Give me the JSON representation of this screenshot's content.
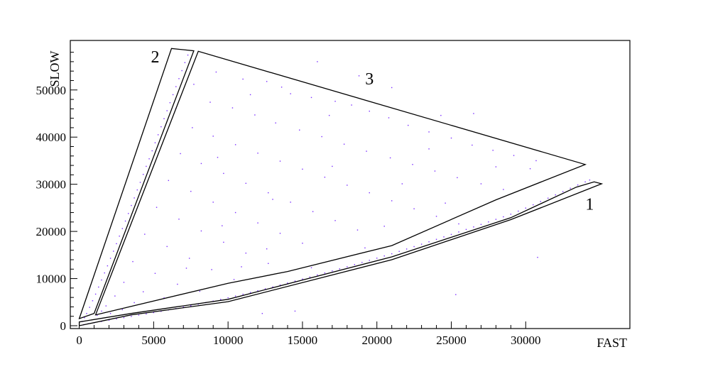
{
  "chart_data": {
    "type": "scatter",
    "title": "",
    "xlabel": "FAST",
    "ylabel": "SLOW",
    "xlim": [
      -600,
      37000
    ],
    "ylim": [
      -600,
      60500
    ],
    "x_ticks": [
      0,
      5000,
      10000,
      15000,
      20000,
      25000,
      30000
    ],
    "x_tick_labels": [
      "0",
      "5000",
      "10000",
      "15000",
      "20000",
      "25000",
      "30000"
    ],
    "y_ticks": [
      0,
      10000,
      20000,
      30000,
      40000,
      50000
    ],
    "y_tick_labels": [
      "0",
      "10000",
      "20000",
      "30000",
      "40000",
      "50000"
    ],
    "grid": false,
    "point_color": "#7b2fff",
    "regions": [
      {
        "label": "1",
        "label_at": [
          34300,
          24600
        ],
        "polygon": [
          [
            0,
            0
          ],
          [
            0,
            800
          ],
          [
            3500,
            2600
          ],
          [
            10000,
            5600
          ],
          [
            21000,
            14600
          ],
          [
            29000,
            22900
          ],
          [
            33400,
            29400
          ],
          [
            34600,
            30500
          ],
          [
            35100,
            30100
          ],
          [
            29000,
            22500
          ],
          [
            21000,
            14000
          ],
          [
            10000,
            5100
          ],
          [
            3500,
            2300
          ]
        ]
      },
      {
        "label": "2",
        "label_at": [
          5100,
          55800
        ],
        "polygon": [
          [
            0,
            1500
          ],
          [
            6200,
            58800
          ],
          [
            7700,
            58300
          ],
          [
            1000,
            2600
          ]
        ]
      },
      {
        "label": "3",
        "label_at": [
          19500,
          51200
        ],
        "polygon": [
          [
            1100,
            2300
          ],
          [
            8000,
            58200
          ],
          [
            34000,
            34200
          ],
          [
            28000,
            26700
          ],
          [
            21000,
            17000
          ],
          [
            14000,
            11500
          ],
          [
            10000,
            9000
          ]
        ]
      }
    ],
    "series": [
      {
        "points_fast_band": [
          [
            300,
            230
          ],
          [
            600,
            420
          ],
          [
            1000,
            640
          ],
          [
            1500,
            900
          ],
          [
            2000,
            1180
          ],
          [
            2500,
            1450
          ],
          [
            3000,
            1700
          ],
          [
            3500,
            1980
          ],
          [
            4000,
            2250
          ],
          [
            4500,
            2500
          ],
          [
            5000,
            2780
          ],
          [
            5500,
            3050
          ],
          [
            6000,
            3350
          ],
          [
            6500,
            3650
          ],
          [
            7000,
            3950
          ],
          [
            7500,
            4250
          ],
          [
            8000,
            4560
          ],
          [
            8500,
            4900
          ],
          [
            9000,
            5230
          ],
          [
            9500,
            5580
          ],
          [
            10000,
            5930
          ],
          [
            10500,
            6300
          ],
          [
            11000,
            6680
          ],
          [
            11500,
            7050
          ],
          [
            12000,
            7430
          ],
          [
            12500,
            7820
          ],
          [
            13000,
            8220
          ],
          [
            13500,
            8640
          ],
          [
            14000,
            9060
          ],
          [
            14500,
            9480
          ],
          [
            15000,
            9900
          ],
          [
            15500,
            10330
          ],
          [
            16000,
            10760
          ],
          [
            16500,
            11190
          ],
          [
            17000,
            11630
          ],
          [
            17500,
            12070
          ],
          [
            18000,
            12510
          ],
          [
            18500,
            12960
          ],
          [
            19000,
            13420
          ],
          [
            19500,
            13870
          ],
          [
            20000,
            14330
          ],
          [
            20500,
            14800
          ],
          [
            21000,
            15260
          ],
          [
            21500,
            15760
          ],
          [
            22000,
            16270
          ],
          [
            22500,
            16780
          ],
          [
            23000,
            17290
          ],
          [
            23500,
            17800
          ],
          [
            24000,
            18320
          ],
          [
            24500,
            18840
          ],
          [
            25000,
            19360
          ],
          [
            25500,
            19890
          ],
          [
            26000,
            20420
          ],
          [
            26500,
            20950
          ],
          [
            27000,
            21480
          ],
          [
            27500,
            22020
          ],
          [
            28000,
            22560
          ],
          [
            28500,
            23100
          ],
          [
            29000,
            23650
          ],
          [
            29500,
            24300
          ],
          [
            30000,
            24950
          ],
          [
            30500,
            25650
          ],
          [
            31000,
            26350
          ],
          [
            31500,
            27050
          ],
          [
            32000,
            27750
          ],
          [
            32500,
            28450
          ],
          [
            33000,
            29150
          ],
          [
            33500,
            29850
          ],
          [
            34000,
            30500
          ],
          [
            34300,
            30900
          ]
        ],
        "points_slow_band": [
          [
            200,
            900
          ],
          [
            350,
            1700
          ],
          [
            500,
            2600
          ],
          [
            700,
            3900
          ],
          [
            900,
            5300
          ],
          [
            1100,
            6700
          ],
          [
            1300,
            8200
          ],
          [
            1500,
            9700
          ],
          [
            1700,
            11200
          ],
          [
            1900,
            12700
          ],
          [
            2100,
            14300
          ],
          [
            2300,
            15800
          ],
          [
            2500,
            17400
          ],
          [
            2700,
            19000
          ],
          [
            2900,
            20600
          ],
          [
            3100,
            22200
          ],
          [
            3300,
            23800
          ],
          [
            3500,
            25500
          ],
          [
            3700,
            27100
          ],
          [
            3900,
            28800
          ],
          [
            4100,
            30400
          ],
          [
            4300,
            32100
          ],
          [
            4500,
            33800
          ],
          [
            4700,
            35400
          ],
          [
            4900,
            37100
          ],
          [
            5100,
            38800
          ],
          [
            5300,
            40500
          ],
          [
            5500,
            42200
          ],
          [
            5700,
            43900
          ],
          [
            5900,
            45600
          ],
          [
            6100,
            47300
          ],
          [
            6300,
            49000
          ],
          [
            6500,
            50700
          ],
          [
            6700,
            52400
          ],
          [
            6900,
            54100
          ],
          [
            7100,
            55800
          ],
          [
            7300,
            57400
          ]
        ],
        "points_scatter": [
          [
            9200,
            53800
          ],
          [
            11000,
            52300
          ],
          [
            12600,
            51800
          ],
          [
            13600,
            50600
          ],
          [
            14200,
            49200
          ],
          [
            15600,
            48400
          ],
          [
            17200,
            47600
          ],
          [
            18300,
            46800
          ],
          [
            19500,
            45500
          ],
          [
            20800,
            44100
          ],
          [
            22100,
            42500
          ],
          [
            23500,
            41100
          ],
          [
            25000,
            39800
          ],
          [
            26400,
            38300
          ],
          [
            27800,
            37200
          ],
          [
            29200,
            36100
          ],
          [
            30700,
            35000
          ],
          [
            8800,
            47400
          ],
          [
            10300,
            46200
          ],
          [
            11800,
            44700
          ],
          [
            13200,
            43000
          ],
          [
            14800,
            41500
          ],
          [
            16300,
            40100
          ],
          [
            17800,
            38500
          ],
          [
            19300,
            37000
          ],
          [
            20900,
            35600
          ],
          [
            22400,
            34200
          ],
          [
            23900,
            32800
          ],
          [
            25400,
            31400
          ],
          [
            27000,
            30100
          ],
          [
            28500,
            28900
          ],
          [
            7600,
            42000
          ],
          [
            9000,
            40200
          ],
          [
            10500,
            38400
          ],
          [
            12000,
            36600
          ],
          [
            13500,
            34900
          ],
          [
            15000,
            33200
          ],
          [
            16500,
            31500
          ],
          [
            18000,
            29800
          ],
          [
            19500,
            28200
          ],
          [
            21000,
            26500
          ],
          [
            22500,
            24800
          ],
          [
            24000,
            23200
          ],
          [
            25500,
            21600
          ],
          [
            6800,
            36500
          ],
          [
            8200,
            34400
          ],
          [
            9700,
            32300
          ],
          [
            11200,
            30200
          ],
          [
            12700,
            28200
          ],
          [
            14200,
            26200
          ],
          [
            15700,
            24200
          ],
          [
            17200,
            22300
          ],
          [
            18700,
            20300
          ],
          [
            6000,
            30800
          ],
          [
            7500,
            28500
          ],
          [
            9000,
            26200
          ],
          [
            10500,
            24000
          ],
          [
            12000,
            21800
          ],
          [
            13500,
            19600
          ],
          [
            15000,
            17500
          ],
          [
            5200,
            25100
          ],
          [
            6700,
            22600
          ],
          [
            8200,
            20100
          ],
          [
            9700,
            17700
          ],
          [
            11200,
            15400
          ],
          [
            12700,
            13200
          ],
          [
            4400,
            19400
          ],
          [
            5900,
            16800
          ],
          [
            7400,
            14300
          ],
          [
            8900,
            11900
          ],
          [
            10400,
            9800
          ],
          [
            3600,
            13600
          ],
          [
            5100,
            11100
          ],
          [
            6600,
            8800
          ],
          [
            8100,
            7300
          ],
          [
            3000,
            9200
          ],
          [
            4300,
            7200
          ],
          [
            5700,
            5900
          ],
          [
            2400,
            6300
          ],
          [
            3700,
            4900
          ],
          [
            1800,
            4200
          ],
          [
            2900,
            3400
          ],
          [
            1500,
            3100
          ],
          [
            2100,
            2600
          ],
          [
            1200,
            2200
          ],
          [
            16000,
            56000
          ],
          [
            21000,
            50500
          ],
          [
            26500,
            45000
          ],
          [
            12300,
            2600
          ],
          [
            14500,
            3100
          ],
          [
            25300,
            6600
          ],
          [
            30800,
            14500
          ],
          [
            18800,
            53000
          ],
          [
            24300,
            44600
          ],
          [
            30300,
            33300
          ],
          [
            13000,
            26800
          ],
          [
            20500,
            21100
          ],
          [
            17000,
            33800
          ],
          [
            11500,
            49000
          ],
          [
            9300,
            35700
          ],
          [
            16800,
            44600
          ],
          [
            23500,
            37500
          ],
          [
            28000,
            33700
          ],
          [
            19200,
            16500
          ],
          [
            24600,
            26000
          ],
          [
            12600,
            16300
          ],
          [
            9600,
            21200
          ],
          [
            15600,
            12300
          ],
          [
            7200,
            12200
          ],
          [
            10900,
            12500
          ],
          [
            21700,
            30100
          ],
          [
            6500,
            46100
          ],
          [
            7700,
            51200
          ]
        ]
      }
    ]
  }
}
